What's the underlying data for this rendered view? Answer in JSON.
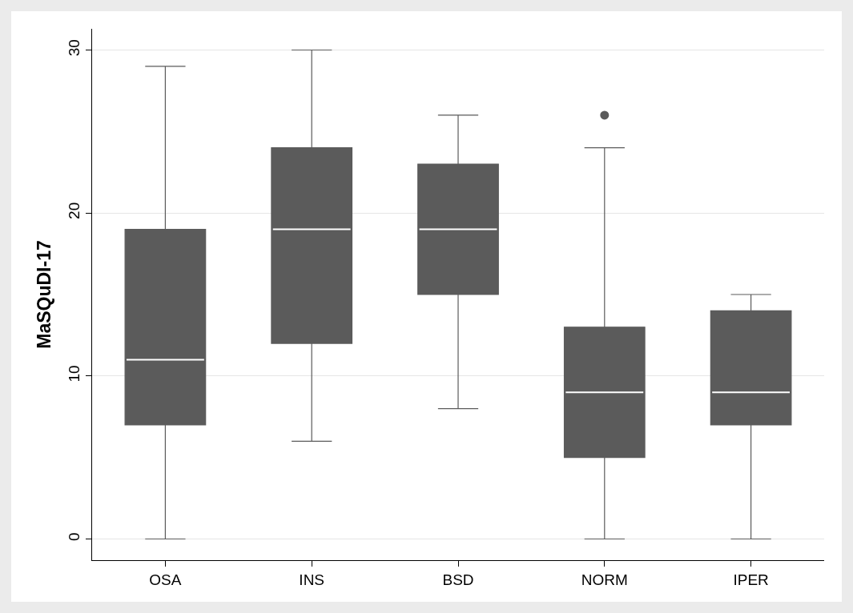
{
  "chart_data": {
    "type": "box",
    "ylabel": "MaSQuDI-17",
    "categories": [
      "OSA",
      "INS",
      "BSD",
      "NORM",
      "IPER"
    ],
    "ylim": [
      -1.3,
      31.3
    ],
    "yticks": [
      0,
      10,
      20,
      30
    ],
    "grid": "y",
    "series": [
      {
        "color": "#5b5b5b",
        "boxes": [
          {
            "low": 0,
            "q1": 7,
            "median": 11,
            "q3": 19,
            "high": 29
          },
          {
            "low": 6,
            "q1": 12,
            "median": 19,
            "q3": 24,
            "high": 30
          },
          {
            "low": 8,
            "q1": 15,
            "median": 19,
            "q3": 23,
            "high": 26
          },
          {
            "low": 0,
            "q1": 5,
            "median": 9,
            "q3": 13,
            "high": 24,
            "outliers": [
              26
            ]
          },
          {
            "low": 0,
            "q1": 7,
            "median": 9,
            "q3": 14,
            "high": 15
          }
        ]
      }
    ]
  }
}
